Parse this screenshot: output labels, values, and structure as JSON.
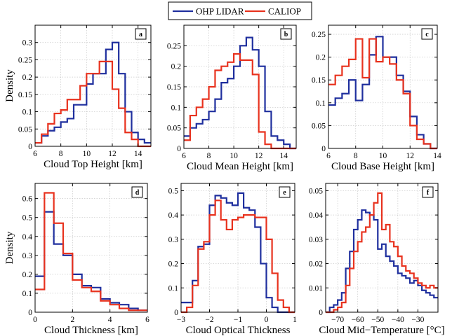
{
  "legend": [
    "OHP LIDAR",
    "CALIOP"
  ],
  "series_colors": {
    "OHP LIDAR": "#1f2f9e",
    "CALIOP": "#e8321e"
  },
  "ylabel_shared": "Density",
  "chart_data": [
    {
      "type": "histogram-step",
      "panel_label": "a",
      "xlabel": "Cloud Top Height [km]",
      "ylabel": "Density",
      "xlim": [
        6,
        15
      ],
      "ylim": [
        0,
        0.35
      ],
      "xticks": [
        6,
        8,
        10,
        12,
        14
      ],
      "yticks": [
        0,
        0.05,
        0.1,
        0.15,
        0.2,
        0.25,
        0.3
      ],
      "ytick_labels": [
        "0",
        "0.05",
        "0.1",
        "0.15",
        "0.2",
        "0.25",
        "0.3"
      ],
      "grid": true,
      "series": [
        {
          "name": "OHP LIDAR",
          "edges": [
            6,
            6.5,
            7,
            7.5,
            8,
            8.5,
            9,
            9.5,
            10,
            10.5,
            11,
            11.5,
            12,
            12.5,
            13,
            13.5,
            14,
            14.5,
            15
          ],
          "values": [
            0.01,
            0.03,
            0.045,
            0.055,
            0.07,
            0.08,
            0.12,
            0.12,
            0.18,
            0.21,
            0.21,
            0.28,
            0.3,
            0.21,
            0.1,
            0.04,
            0.02,
            0.01
          ]
        },
        {
          "name": "CALIOP",
          "edges": [
            6,
            6.5,
            7,
            7.5,
            8,
            8.5,
            9,
            9.5,
            10,
            10.5,
            11,
            11.5,
            12,
            12.5,
            13,
            13.5,
            14,
            14.5,
            15
          ],
          "values": [
            0.01,
            0.035,
            0.065,
            0.095,
            0.105,
            0.135,
            0.135,
            0.175,
            0.21,
            0.21,
            0.245,
            0.245,
            0.165,
            0.11,
            0.04,
            0.02,
            0,
            0
          ]
        }
      ]
    },
    {
      "type": "histogram-step",
      "panel_label": "b",
      "xlabel": "Cloud Mean Height [km]",
      "ylabel": "",
      "xlim": [
        6,
        15
      ],
      "ylim": [
        0,
        0.3
      ],
      "xticks": [
        6,
        8,
        10,
        12,
        14
      ],
      "yticks": [
        0,
        0.05,
        0.1,
        0.15,
        0.2,
        0.25
      ],
      "ytick_labels": [
        "0",
        "0.05",
        "0.1",
        "0.15",
        "0.2",
        "0.25"
      ],
      "grid": true,
      "series": [
        {
          "name": "OHP LIDAR",
          "edges": [
            6,
            6.5,
            7,
            7.5,
            8,
            8.5,
            9,
            9.5,
            10,
            10.5,
            11,
            11.5,
            12,
            12.5,
            13,
            13.5,
            14,
            14.5,
            15
          ],
          "values": [
            0.03,
            0.05,
            0.06,
            0.07,
            0.09,
            0.12,
            0.16,
            0.17,
            0.2,
            0.25,
            0.27,
            0.24,
            0.2,
            0.09,
            0.03,
            0.02,
            0.01,
            0
          ]
        },
        {
          "name": "CALIOP",
          "edges": [
            6,
            6.5,
            7,
            7.5,
            8,
            8.5,
            9,
            9.5,
            10,
            10.5,
            11,
            11.5,
            12,
            12.5,
            13,
            13.5,
            14,
            14.5,
            15
          ],
          "values": [
            0.02,
            0.08,
            0.1,
            0.12,
            0.15,
            0.19,
            0.2,
            0.21,
            0.23,
            0.215,
            0.215,
            0.18,
            0.04,
            0.01,
            0,
            0,
            0,
            0
          ]
        }
      ]
    },
    {
      "type": "histogram-step",
      "panel_label": "c",
      "xlabel": "Cloud Base Height [km]",
      "ylabel": "",
      "xlim": [
        6,
        14
      ],
      "ylim": [
        0,
        0.27
      ],
      "xticks": [
        6,
        8,
        10,
        12,
        14
      ],
      "yticks": [
        0,
        0.05,
        0.1,
        0.15,
        0.2,
        0.25
      ],
      "ytick_labels": [
        "0",
        "0.05",
        "0.1",
        "0.15",
        "0.2",
        "0.25"
      ],
      "grid": true,
      "series": [
        {
          "name": "OHP LIDAR",
          "edges": [
            6,
            6.5,
            7,
            7.5,
            8,
            8.5,
            9,
            9.5,
            10,
            10.5,
            11,
            11.5,
            12,
            12.5,
            13,
            13.5,
            14
          ],
          "values": [
            0.095,
            0.11,
            0.12,
            0.15,
            0.105,
            0.14,
            0.205,
            0.245,
            0.2,
            0.2,
            0.16,
            0.125,
            0.07,
            0.03,
            0.01,
            0
          ]
        },
        {
          "name": "CALIOP",
          "edges": [
            6,
            6.5,
            7,
            7.5,
            8,
            8.5,
            9,
            9.5,
            10,
            10.5,
            11,
            11.5,
            12,
            12.5,
            13,
            13.5,
            14
          ],
          "values": [
            0.14,
            0.16,
            0.18,
            0.195,
            0.24,
            0.155,
            0.24,
            0.19,
            0.2,
            0.185,
            0.15,
            0.12,
            0.05,
            0.02,
            0.01,
            0
          ]
        }
      ]
    },
    {
      "type": "histogram-step",
      "panel_label": "d",
      "xlabel": "Cloud Thickness [km]",
      "ylabel": "Density",
      "xlim": [
        0,
        6
      ],
      "ylim": [
        0,
        0.68
      ],
      "xticks": [
        0,
        2,
        4,
        6
      ],
      "yticks": [
        0,
        0.1,
        0.2,
        0.3,
        0.4,
        0.5,
        0.6
      ],
      "ytick_labels": [
        "0",
        "0.1",
        "0.2",
        "0.3",
        "0.4",
        "0.5",
        "0.6"
      ],
      "grid": true,
      "series": [
        {
          "name": "OHP LIDAR",
          "edges": [
            0,
            0.5,
            1,
            1.5,
            2,
            2.5,
            3,
            3.5,
            4,
            4.5,
            5,
            5.5,
            6
          ],
          "values": [
            0.19,
            0.53,
            0.36,
            0.3,
            0.2,
            0.14,
            0.13,
            0.07,
            0.05,
            0.04,
            0.02,
            0.01
          ]
        },
        {
          "name": "CALIOP",
          "edges": [
            0,
            0.5,
            1,
            1.5,
            2,
            2.5,
            3,
            3.5,
            4,
            4.5,
            5,
            5.5,
            6
          ],
          "values": [
            0.12,
            0.63,
            0.47,
            0.31,
            0.17,
            0.13,
            0.11,
            0.06,
            0.04,
            0.02,
            0.01,
            0.01
          ]
        }
      ]
    },
    {
      "type": "histogram-step",
      "panel_label": "e",
      "xlabel": "Cloud Optical Thickness",
      "ylabel": "",
      "xlim": [
        -3,
        1
      ],
      "ylim": [
        0,
        0.53
      ],
      "xticks": [
        -3,
        -2,
        -1,
        0,
        1
      ],
      "yticks": [
        0,
        0.1,
        0.2,
        0.3,
        0.4,
        0.5
      ],
      "ytick_labels": [
        "0",
        "0.1",
        "0.2",
        "0.3",
        "0.4",
        "0.5"
      ],
      "grid": true,
      "series": [
        {
          "name": "OHP LIDAR",
          "edges": [
            -3,
            -2.8,
            -2.6,
            -2.4,
            -2.2,
            -2,
            -1.8,
            -1.6,
            -1.4,
            -1.2,
            -1,
            -0.8,
            -0.6,
            -0.4,
            -0.2,
            0,
            0.2,
            0.4,
            0.6,
            0.8,
            1
          ],
          "values": [
            0.04,
            0.04,
            0.13,
            0.27,
            0.28,
            0.44,
            0.48,
            0.47,
            0.45,
            0.44,
            0.49,
            0.43,
            0.42,
            0.35,
            0.2,
            0.06,
            0.02,
            0,
            0,
            0
          ]
        },
        {
          "name": "CALIOP",
          "edges": [
            -3,
            -2.8,
            -2.6,
            -2.4,
            -2.2,
            -2,
            -1.8,
            -1.6,
            -1.4,
            -1.2,
            -1,
            -0.8,
            -0.6,
            -0.4,
            -0.2,
            0,
            0.2,
            0.4,
            0.6,
            0.8,
            1
          ],
          "values": [
            0,
            0.02,
            0.11,
            0.26,
            0.29,
            0.4,
            0.46,
            0.38,
            0.34,
            0.38,
            0.39,
            0.4,
            0.4,
            0.39,
            0.39,
            0.3,
            0.16,
            0.05,
            0.02,
            0
          ]
        }
      ]
    },
    {
      "type": "histogram-step",
      "panel_label": "f",
      "xlabel": "Cloud Mid−Temperature [°C]",
      "ylabel": "",
      "xlim": [
        -76,
        -20
      ],
      "ylim": [
        0,
        0.053
      ],
      "xticks": [
        -70,
        -60,
        -50,
        -40,
        -30
      ],
      "yticks": [
        0,
        0.01,
        0.02,
        0.03,
        0.04,
        0.05
      ],
      "ytick_labels": [
        "0",
        "0.01",
        "0.02",
        "0.03",
        "0.04",
        "0.05"
      ],
      "grid": true,
      "series": [
        {
          "name": "OHP LIDAR",
          "edges": [
            -76,
            -74,
            -72,
            -70,
            -68,
            -66,
            -64,
            -62,
            -60,
            -58,
            -56,
            -54,
            -52,
            -50,
            -48,
            -46,
            -44,
            -42,
            -40,
            -38,
            -36,
            -34,
            -32,
            -30,
            -28,
            -26,
            -24,
            -22,
            -20
          ],
          "values": [
            0,
            0.002,
            0.003,
            0.005,
            0.008,
            0.018,
            0.025,
            0.034,
            0.038,
            0.042,
            0.041,
            0.04,
            0.038,
            0.026,
            0.028,
            0.023,
            0.021,
            0.019,
            0.016,
            0.015,
            0.014,
            0.012,
            0.013,
            0.011,
            0.009,
            0.008,
            0.007,
            0.006
          ]
        },
        {
          "name": "CALIOP",
          "edges": [
            -76,
            -74,
            -72,
            -70,
            -68,
            -66,
            -64,
            -62,
            -60,
            -58,
            -56,
            -54,
            -52,
            -50,
            -48,
            -46,
            -44,
            -42,
            -40,
            -38,
            -36,
            -34,
            -32,
            -30,
            -28,
            -26,
            -24,
            -22,
            -20
          ],
          "values": [
            0,
            0,
            0.001,
            0.002,
            0.004,
            0.011,
            0.018,
            0.025,
            0.029,
            0.033,
            0.035,
            0.04,
            0.045,
            0.049,
            0.034,
            0.036,
            0.029,
            0.027,
            0.023,
            0.019,
            0.017,
            0.016,
            0.014,
            0.012,
            0.011,
            0.01,
            0.011,
            0.01
          ]
        }
      ]
    }
  ]
}
